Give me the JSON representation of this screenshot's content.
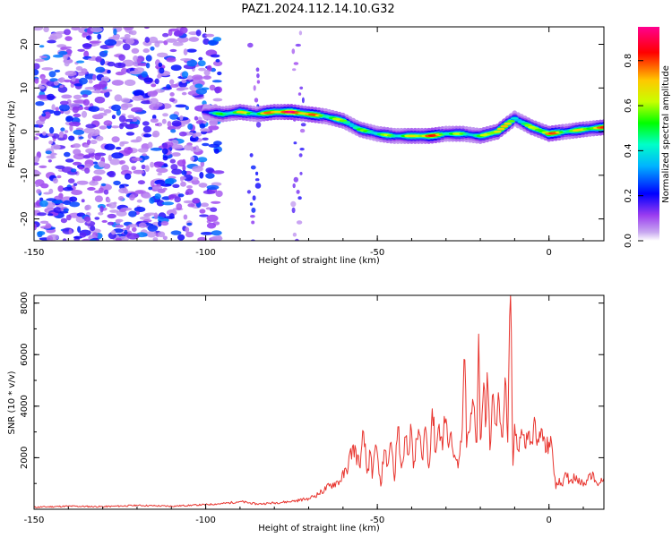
{
  "title": "PAZ1.2024.112.14.10.G32",
  "chart_data": [
    {
      "type": "heatmap",
      "xlabel": "Height of straight line (km)",
      "ylabel": "Frequency (Hz)",
      "xlim": [
        -150,
        16
      ],
      "ylim": [
        -25,
        24
      ],
      "xticks": [
        -150,
        -100,
        -50,
        0
      ],
      "xtick_labels": [
        "-150",
        "-100",
        "-50",
        "0"
      ],
      "yticks": [
        20,
        10,
        0,
        -10,
        -20
      ],
      "ytick_labels": [
        "20",
        "10",
        "0",
        "-10",
        "-20"
      ],
      "colorbar": {
        "label": "Normalized spectral amplitude",
        "range": [
          0,
          0.95
        ],
        "ticks": [
          0.0,
          0.2,
          0.4,
          0.6,
          0.8
        ],
        "tick_labels": [
          "0.0",
          "0.2",
          "0.4",
          "0.6",
          "0.8"
        ],
        "colormap": [
          "#ffffff",
          "#c8a8f0",
          "#9a3cf0",
          "#0000ff",
          "#00b4ff",
          "#00ffc8",
          "#00ff00",
          "#c8ff00",
          "#ffc800",
          "#ff0000",
          "#ff0090"
        ]
      },
      "ridge": {
        "description_points_x_km": [
          -100,
          -95,
          -90,
          -85,
          -80,
          -75,
          -70,
          -65,
          -60,
          -55,
          -50,
          -45,
          -40,
          -35,
          -30,
          -25,
          -20,
          -15,
          -10,
          -5,
          0,
          5,
          10,
          16
        ],
        "frequency_hz": [
          4.5,
          4.0,
          4.5,
          4.0,
          4.5,
          4.5,
          4.0,
          3.5,
          2.5,
          0.5,
          -0.5,
          -1.0,
          -1.0,
          -1.0,
          -0.5,
          -0.5,
          -1.0,
          0.0,
          3.0,
          1.0,
          -0.5,
          0.0,
          0.5,
          1.0
        ],
        "amplitude": [
          0.3,
          0.45,
          0.6,
          0.5,
          0.75,
          0.85,
          0.75,
          0.55,
          0.5,
          0.45,
          0.5,
          0.5,
          0.55,
          0.8,
          0.55,
          0.5,
          0.45,
          0.75,
          0.45,
          0.5,
          0.75,
          0.55,
          0.6,
          0.7
        ]
      },
      "noise_region_x_km": [
        -150,
        -96
      ],
      "noise_level": [
        0.05,
        0.3
      ]
    },
    {
      "type": "line",
      "xlabel": "Height of straight line (km)",
      "ylabel": "SNR (10 * v/v)",
      "xlim": [
        -150,
        16
      ],
      "ylim": [
        0,
        8300
      ],
      "xticks": [
        -150,
        -100,
        -50,
        0
      ],
      "xtick_labels": [
        "-150",
        "-100",
        "-50",
        "0"
      ],
      "yticks": [
        2000,
        4000,
        6000,
        8000
      ],
      "ytick_labels": [
        "2000",
        "4000",
        "6000",
        "8000"
      ],
      "color": "#e8342e",
      "series": [
        {
          "x": [
            -150,
            -140,
            -130,
            -120,
            -110,
            -100,
            -95,
            -90,
            -85,
            -80,
            -75,
            -70,
            -67,
            -64,
            -61,
            -59,
            -57,
            -55,
            -54,
            -53,
            -52,
            -51.5,
            -50.5,
            -49,
            -48,
            -47,
            -46,
            -45,
            -44,
            -43,
            -42,
            -41,
            -40.3,
            -39.5,
            -38,
            -37,
            -36,
            -35,
            -34,
            -33,
            -32,
            -31,
            -30.5,
            -29.5,
            -28.5,
            -27.5,
            -26.5,
            -25.5,
            -24.5,
            -24,
            -23,
            -22,
            -21,
            -20.5,
            -20,
            -19,
            -18.5,
            -18,
            -17.2,
            -16.5,
            -15.5,
            -14.5,
            -13.5,
            -12.8,
            -12,
            -11.2,
            -10.5,
            -10,
            -9,
            -8,
            -7,
            -6,
            -5,
            -4,
            -3,
            -2,
            -1,
            0,
            1,
            2,
            3,
            4,
            5,
            6,
            8,
            10,
            12,
            14,
            16
          ],
          "y": [
            80,
            120,
            100,
            150,
            120,
            180,
            220,
            300,
            200,
            250,
            300,
            420,
            600,
            900,
            1100,
            1500,
            2500,
            1600,
            3000,
            1400,
            2200,
            1200,
            2500,
            900,
            2300,
            1700,
            2600,
            1100,
            3200,
            1600,
            2800,
            2100,
            3300,
            1600,
            3100,
            2000,
            3200,
            1600,
            3900,
            2200,
            3300,
            2300,
            3600,
            2600,
            3000,
            2100,
            1600,
            2600,
            5800,
            2400,
            3100,
            4100,
            2600,
            6800,
            2700,
            4900,
            3200,
            5300,
            2300,
            4400,
            3300,
            4200,
            2800,
            5100,
            2600,
            8300,
            1700,
            3300,
            2300,
            3100,
            2400,
            3000,
            2600,
            3400,
            2600,
            3100,
            2200,
            2600,
            2300,
            800,
            1200,
            900,
            1400,
            1100,
            1300,
            900,
            1400,
            1000,
            1200
          ]
        }
      ]
    }
  ]
}
